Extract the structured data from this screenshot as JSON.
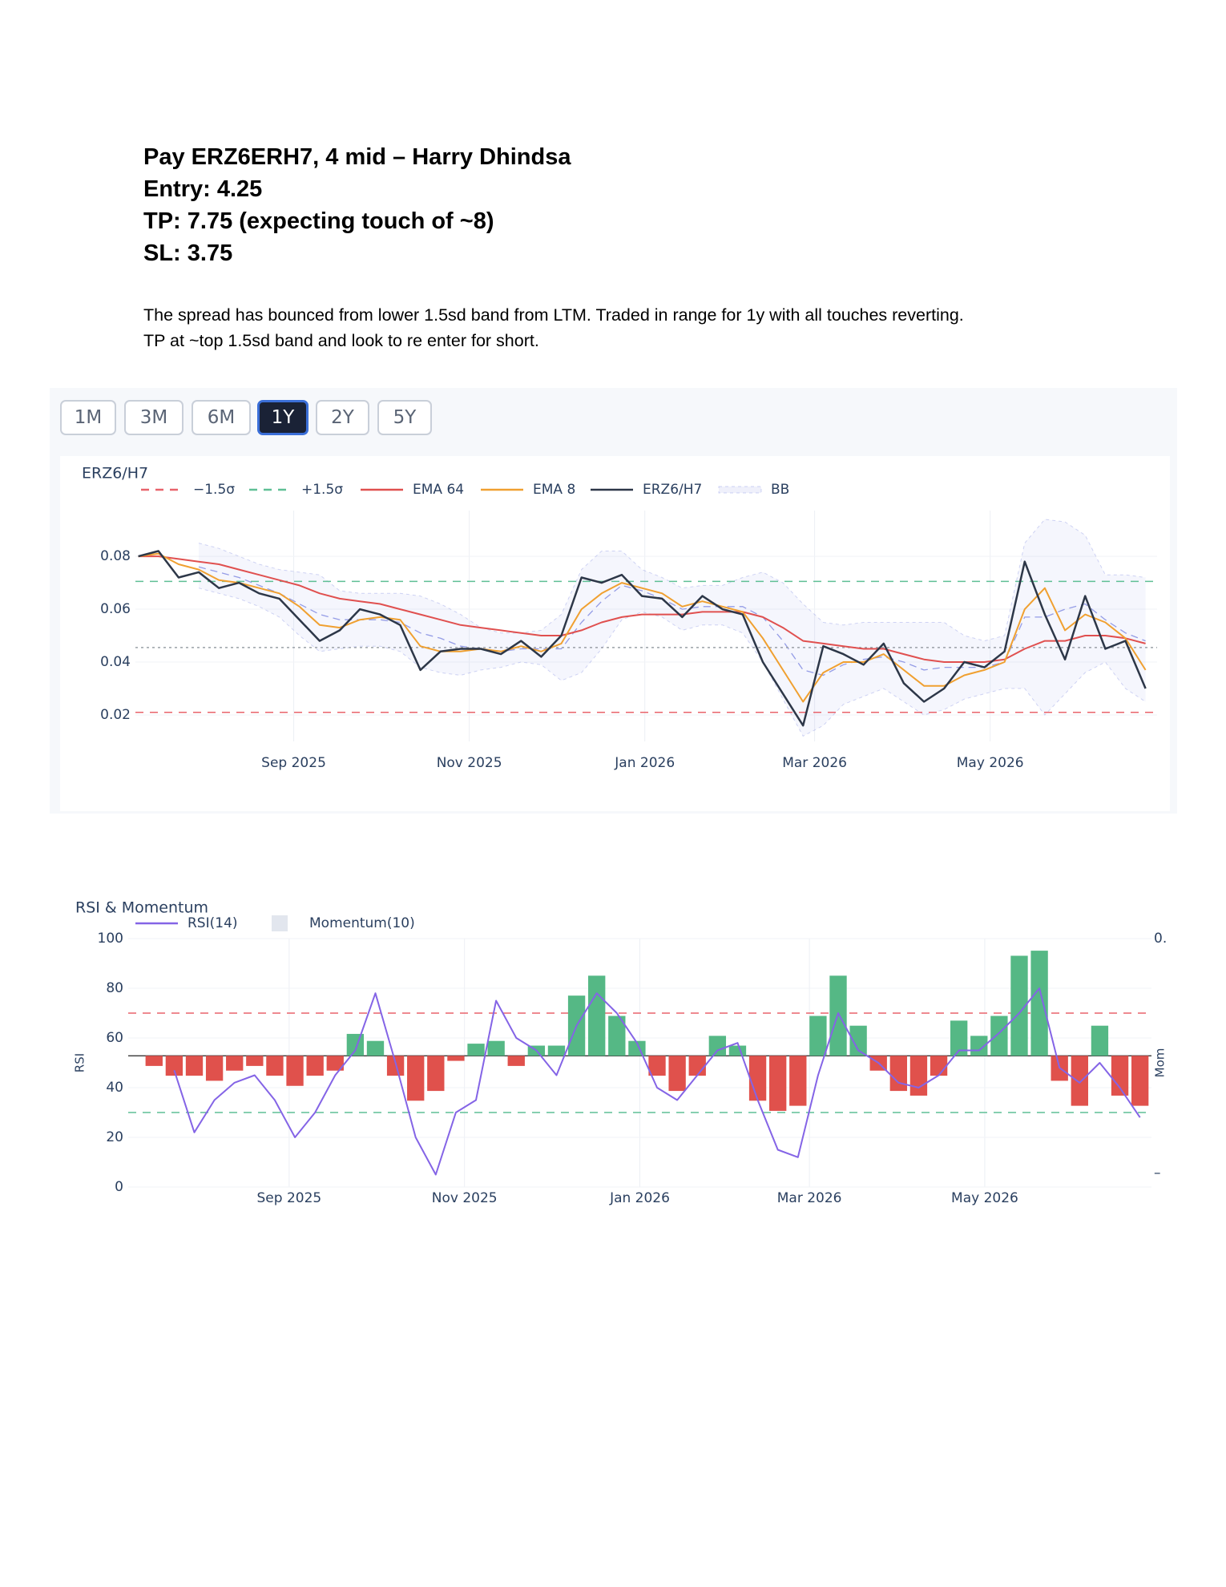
{
  "header": {
    "lines": [
      "Pay ERZ6ERH7, 4 mid – Harry Dhindsa",
      "Entry: 4.25",
      "TP: 7.75 (expecting touch of ~8)",
      "SL: 3.75"
    ]
  },
  "body": {
    "lines": [
      "The spread has bounced from lower 1.5sd band from LTM. Traded in range for 1y with all touches reverting.",
      "TP at ~top 1.5sd band and look to re enter for short."
    ]
  },
  "range_selector": {
    "options": [
      "1M",
      "3M",
      "6M",
      "1Y",
      "2Y",
      "5Y"
    ],
    "active_index": 3
  },
  "chart_data": [
    {
      "type": "line",
      "title": "ERZ6/H7",
      "grid": true,
      "x": [
        "2025-07-09",
        "2025-07-16",
        "2025-07-23",
        "2025-07-30",
        "2025-08-06",
        "2025-08-13",
        "2025-08-20",
        "2025-08-27",
        "2025-09-03",
        "2025-09-10",
        "2025-09-17",
        "2025-09-24",
        "2025-10-01",
        "2025-10-08",
        "2025-10-15",
        "2025-10-22",
        "2025-10-29",
        "2025-11-05",
        "2025-11-12",
        "2025-11-19",
        "2025-11-26",
        "2025-12-03",
        "2025-12-10",
        "2025-12-17",
        "2025-12-24",
        "2025-12-31",
        "2026-01-07",
        "2026-01-14",
        "2026-01-21",
        "2026-01-28",
        "2026-02-04",
        "2026-02-11",
        "2026-02-18",
        "2026-02-25",
        "2026-03-04",
        "2026-03-11",
        "2026-03-18",
        "2026-03-25",
        "2026-04-01",
        "2026-04-08",
        "2026-04-15",
        "2026-04-22",
        "2026-04-29",
        "2026-05-06",
        "2026-05-13",
        "2026-05-20",
        "2026-05-27",
        "2026-06-03",
        "2026-06-10",
        "2026-06-17",
        "2026-06-24"
      ],
      "xlim": [
        "2025-07-08",
        "2026-06-28"
      ],
      "xticks": [
        {
          "value": "2025-09-01",
          "label": "Sep 2025"
        },
        {
          "value": "2025-11-01",
          "label": "Nov 2025"
        },
        {
          "value": "2026-01-01",
          "label": "Jan 2026"
        },
        {
          "value": "2026-03-01",
          "label": "Mar 2026"
        },
        {
          "value": "2026-05-01",
          "label": "May 2026"
        }
      ],
      "ylim": [
        0.01,
        0.0973
      ],
      "yticks": [
        0.02,
        0.04,
        0.06,
        0.08
      ],
      "hlines": [
        {
          "name": "−1.5σ",
          "value": 0.021,
          "color": "#e8636b",
          "dash": "dash"
        },
        {
          "name": "+1.5σ",
          "value": 0.0705,
          "color": "#5fbf95",
          "dash": "dash"
        },
        {
          "value": 0.0455,
          "color": "#9aa0a8",
          "dash": "dot"
        }
      ],
      "series": [
        {
          "name": "EMA 64",
          "color": "#e0504f",
          "width": 2,
          "values": [
            0.08,
            0.08,
            0.079,
            0.078,
            0.077,
            0.075,
            0.073,
            0.071,
            0.069,
            0.066,
            0.064,
            0.063,
            0.062,
            0.06,
            0.058,
            0.056,
            0.054,
            0.053,
            0.052,
            0.051,
            0.05,
            0.05,
            0.052,
            0.055,
            0.057,
            0.058,
            0.058,
            0.058,
            0.059,
            0.059,
            0.059,
            0.057,
            0.053,
            0.048,
            0.047,
            0.046,
            0.045,
            0.045,
            0.043,
            0.041,
            0.04,
            0.04,
            0.04,
            0.041,
            0.045,
            0.048,
            0.048,
            0.05,
            0.05,
            0.049,
            0.047
          ]
        },
        {
          "name": "EMA 8",
          "color": "#f0a030",
          "width": 2,
          "values": [
            0.08,
            0.081,
            0.077,
            0.075,
            0.071,
            0.07,
            0.068,
            0.066,
            0.061,
            0.054,
            0.053,
            0.056,
            0.057,
            0.056,
            0.046,
            0.044,
            0.044,
            0.045,
            0.044,
            0.046,
            0.044,
            0.047,
            0.06,
            0.066,
            0.07,
            0.068,
            0.066,
            0.061,
            0.063,
            0.061,
            0.059,
            0.049,
            0.037,
            0.025,
            0.036,
            0.04,
            0.04,
            0.043,
            0.037,
            0.031,
            0.031,
            0.035,
            0.037,
            0.04,
            0.06,
            0.068,
            0.052,
            0.058,
            0.055,
            0.049,
            0.037
          ]
        },
        {
          "name": "ERZ6/H7",
          "color": "#2d3748",
          "width": 2.5,
          "values": [
            0.08,
            0.082,
            0.072,
            0.074,
            0.068,
            0.07,
            0.066,
            0.064,
            0.056,
            0.048,
            0.052,
            0.06,
            0.058,
            0.054,
            0.037,
            0.044,
            0.045,
            0.045,
            0.043,
            0.048,
            0.042,
            0.05,
            0.072,
            0.07,
            0.073,
            0.065,
            0.064,
            0.057,
            0.065,
            0.06,
            0.058,
            0.04,
            0.028,
            0.016,
            0.046,
            0.043,
            0.039,
            0.047,
            0.032,
            0.025,
            0.03,
            0.04,
            0.038,
            0.044,
            0.078,
            0.058,
            0.041,
            0.065,
            0.045,
            0.048,
            0.03
          ]
        }
      ],
      "bands": [
        {
          "name": "BB",
          "color": "#7c86e0",
          "upper": [
            null,
            null,
            null,
            0.085,
            0.083,
            0.08,
            0.077,
            0.075,
            0.074,
            0.073,
            0.067,
            0.066,
            0.066,
            0.066,
            0.065,
            0.062,
            0.058,
            0.053,
            0.051,
            0.051,
            0.052,
            0.058,
            0.075,
            0.082,
            0.082,
            0.075,
            0.072,
            0.068,
            0.069,
            0.069,
            0.072,
            0.074,
            0.07,
            0.062,
            0.055,
            0.054,
            0.055,
            0.055,
            0.055,
            0.055,
            0.055,
            0.05,
            0.048,
            0.05,
            0.085,
            0.094,
            0.093,
            0.088,
            0.073,
            0.073,
            0.072
          ],
          "lower": [
            null,
            null,
            null,
            0.068,
            0.066,
            0.064,
            0.061,
            0.057,
            0.05,
            0.044,
            0.045,
            0.046,
            0.046,
            0.044,
            0.038,
            0.036,
            0.035,
            0.037,
            0.038,
            0.04,
            0.039,
            0.033,
            0.036,
            0.045,
            0.056,
            0.059,
            0.057,
            0.052,
            0.054,
            0.054,
            0.051,
            0.04,
            0.026,
            0.012,
            0.016,
            0.024,
            0.027,
            0.03,
            0.025,
            0.02,
            0.022,
            0.026,
            0.028,
            0.03,
            0.03,
            0.02,
            0.028,
            0.036,
            0.04,
            0.03,
            0.025
          ],
          "mid": [
            null,
            null,
            null,
            0.076,
            0.074,
            0.072,
            0.069,
            0.066,
            0.062,
            0.058,
            0.056,
            0.056,
            0.056,
            0.055,
            0.051,
            0.049,
            0.046,
            0.045,
            0.044,
            0.045,
            0.045,
            0.045,
            0.055,
            0.063,
            0.069,
            0.067,
            0.064,
            0.06,
            0.061,
            0.061,
            0.061,
            0.057,
            0.048,
            0.037,
            0.035,
            0.039,
            0.041,
            0.042,
            0.04,
            0.037,
            0.038,
            0.038,
            0.038,
            0.04,
            0.057,
            0.057,
            0.06,
            0.062,
            0.056,
            0.051,
            0.048
          ]
        }
      ]
    },
    {
      "type": "line",
      "title": "RSI & Momentum",
      "y_title": "RSI",
      "y2_title": "Mom",
      "grid": true,
      "x": [
        "2025-07-09",
        "2025-07-16",
        "2025-07-23",
        "2025-07-30",
        "2025-08-06",
        "2025-08-13",
        "2025-08-20",
        "2025-08-27",
        "2025-09-03",
        "2025-09-10",
        "2025-09-17",
        "2025-09-24",
        "2025-10-01",
        "2025-10-08",
        "2025-10-15",
        "2025-10-22",
        "2025-10-29",
        "2025-11-05",
        "2025-11-12",
        "2025-11-19",
        "2025-11-26",
        "2025-12-03",
        "2025-12-10",
        "2025-12-17",
        "2025-12-24",
        "2025-12-31",
        "2026-01-07",
        "2026-01-14",
        "2026-01-21",
        "2026-01-28",
        "2026-02-04",
        "2026-02-11",
        "2026-02-18",
        "2026-02-25",
        "2026-03-04",
        "2026-03-11",
        "2026-03-18",
        "2026-03-25",
        "2026-04-01",
        "2026-04-08",
        "2026-04-15",
        "2026-04-22",
        "2026-04-29",
        "2026-05-06",
        "2026-05-13",
        "2026-05-20",
        "2026-05-27",
        "2026-06-03",
        "2026-06-10",
        "2026-06-17",
        "2026-06-24"
      ],
      "xlim": [
        "2025-07-07",
        "2026-06-28"
      ],
      "xticks": [
        {
          "value": "2025-09-01",
          "label": "Sep 2025"
        },
        {
          "value": "2025-11-01",
          "label": "Nov 2025"
        },
        {
          "value": "2026-01-01",
          "label": "Jan 2026"
        },
        {
          "value": "2026-03-01",
          "label": "Mar 2026"
        },
        {
          "value": "2026-05-01",
          "label": "May 2026"
        }
      ],
      "ylim": [
        0,
        100
      ],
      "yticks": [
        0,
        20,
        40,
        60,
        80,
        100
      ],
      "y2lim": [
        -0.0336,
        0.03
      ],
      "y2ticks": [
        {
          "value": 0.03,
          "label": "0."
        },
        {
          "value": -0.03,
          "label": "–"
        }
      ],
      "hlines": [
        {
          "value": 70,
          "color": "#e8636b",
          "dash": "dash"
        },
        {
          "value": 30,
          "color": "#5fbf95",
          "dash": "dash"
        }
      ],
      "series": [
        {
          "name": "RSI(14)",
          "color": "#8464e6",
          "width": 2,
          "values": [
            null,
            null,
            47,
            22,
            35,
            42,
            45,
            35,
            20,
            30,
            45,
            55,
            78,
            50,
            20,
            5,
            30,
            35,
            75,
            60,
            55,
            45,
            65,
            78,
            70,
            58,
            40,
            35,
            45,
            55,
            58,
            35,
            15,
            12,
            45,
            70,
            55,
            50,
            42,
            40,
            45,
            55,
            55,
            62,
            70,
            80,
            48,
            42,
            50,
            40,
            28
          ]
        },
        {
          "name": "Momentum(10)",
          "type": "bar",
          "axis": "y2",
          "legend_color": "#e2e6ee",
          "positive_color": "#55b885",
          "negative_color": "#e0514c",
          "values": [
            0,
            -0.0026,
            -0.0051,
            -0.0051,
            -0.0064,
            -0.0038,
            -0.0026,
            -0.0051,
            -0.0077,
            -0.0051,
            -0.0038,
            0.0056,
            0.0038,
            -0.0051,
            -0.0115,
            -0.009,
            -0.0013,
            0.0031,
            0.0038,
            -0.0026,
            0.0026,
            0.0026,
            0.0154,
            0.0205,
            0.0102,
            0.0038,
            -0.0051,
            -0.009,
            -0.0051,
            0.0051,
            0.0026,
            -0.0115,
            -0.0141,
            -0.0128,
            0.0102,
            0.0205,
            0.0077,
            -0.0038,
            -0.009,
            -0.0102,
            -0.0051,
            0.009,
            0.0051,
            0.0102,
            0.0256,
            0.0269,
            -0.0064,
            -0.0128,
            0.0077,
            -0.0102,
            -0.0128
          ]
        }
      ]
    }
  ]
}
